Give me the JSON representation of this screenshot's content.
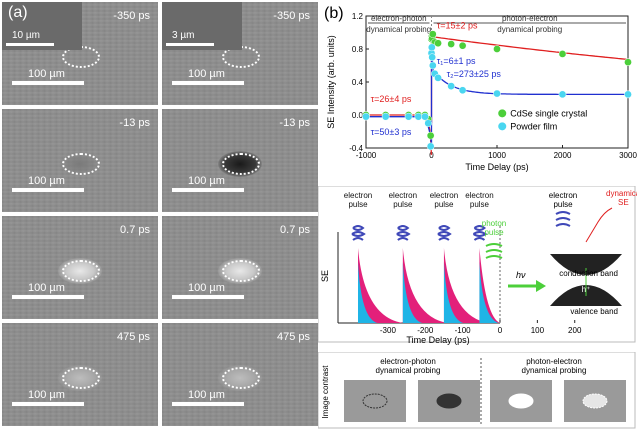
{
  "panel_a": {
    "label": "(a)",
    "tiles": [
      {
        "time": "-350 ps",
        "scale": "100 µm",
        "inset_scale": "10 µm"
      },
      {
        "time": "-350 ps",
        "scale": "100 µm",
        "inset_scale": "3 µm"
      },
      {
        "time": "-13 ps",
        "scale": "100 µm"
      },
      {
        "time": "-13 ps",
        "scale": "100 µm"
      },
      {
        "time": "0.7 ps",
        "scale": "100 µm"
      },
      {
        "time": "0.7 ps",
        "scale": "100 µm"
      },
      {
        "time": "475 ps",
        "scale": "100 µm"
      },
      {
        "time": "475 ps",
        "scale": "100 µm"
      }
    ]
  },
  "panel_b": {
    "label": "(b)",
    "region_left": "electron-photon",
    "region_left_sub": "dynamical probing",
    "region_right": "photon-electron",
    "region_right_sub": "dynamical probing",
    "annotations": {
      "tau_red_pos": "τ=15±2 ps",
      "tau1": "τ₁=6±1 ps",
      "tau2": "τ₂=273±25 ps",
      "tau_red_neg": "τ=26±4 ps",
      "tau_blue_neg": "τ=50±3 ps"
    }
  },
  "panel_c": {
    "ylabel": "SE",
    "xlabel": "Time Delay (ps)",
    "ticks": [
      "-300",
      "-200",
      "-100",
      "0",
      "100",
      "200"
    ],
    "pulse_labels": [
      "electron",
      "pulse"
    ],
    "photon_label": [
      "photon",
      "pulse"
    ],
    "hv": "hν",
    "electron_pulse": [
      "electron",
      "pulse"
    ],
    "dynamical": [
      "dynamical",
      "SE"
    ],
    "conduction_band": "conduction band",
    "valence_band": "valence band",
    "hole": "h⁺"
  },
  "panel_d": {
    "ylabel": "Image contrast",
    "left_title": "electron-photon",
    "left_sub": "dynamical probing",
    "right_title": "photon-electron",
    "right_sub": "dynamical probing"
  },
  "chart_data": {
    "type": "scatter",
    "title": "",
    "xlabel": "Time Delay (ps)",
    "ylabel": "SE Intensity (arb. units)",
    "xlim": [
      -1000,
      3000
    ],
    "ylim": [
      -0.4,
      1.2
    ],
    "xticks": [
      "-1000",
      "0",
      "1000",
      "2000",
      "3000"
    ],
    "yticks": [
      "-0.4",
      "0.0",
      "0.4",
      "0.8",
      "1.2"
    ],
    "legend_position": "right",
    "series": [
      {
        "name": "CdSe single crystal",
        "color": "#4ccf3a",
        "x": [
          -1000,
          -700,
          -350,
          -200,
          -100,
          -50,
          -13,
          0,
          5,
          10,
          20,
          50,
          100,
          300,
          475,
          1000,
          2000,
          3000
        ],
        "y": [
          0.0,
          0.0,
          0.0,
          0.0,
          0.0,
          -0.05,
          -0.25,
          0.92,
          0.95,
          0.93,
          0.98,
          0.88,
          0.87,
          0.86,
          0.84,
          0.8,
          0.74,
          0.64
        ]
      },
      {
        "name": "Powder film",
        "color": "#4ad6f0",
        "x": [
          -1000,
          -700,
          -350,
          -200,
          -100,
          -50,
          -13,
          0,
          5,
          10,
          20,
          50,
          100,
          300,
          475,
          1000,
          2000,
          3000
        ],
        "y": [
          -0.02,
          -0.02,
          -0.02,
          -0.02,
          -0.02,
          -0.1,
          -0.38,
          0.75,
          0.82,
          0.7,
          0.6,
          0.5,
          0.45,
          0.35,
          0.3,
          0.26,
          0.25,
          0.25
        ]
      }
    ]
  },
  "colors": {
    "fit_red": "#e02020",
    "fit_blue": "#2030d0",
    "magenta": "#e3207a",
    "cyan": "#1fb4e6",
    "pulse_blue": "#3f48b8",
    "green": "#4ccf3a"
  }
}
